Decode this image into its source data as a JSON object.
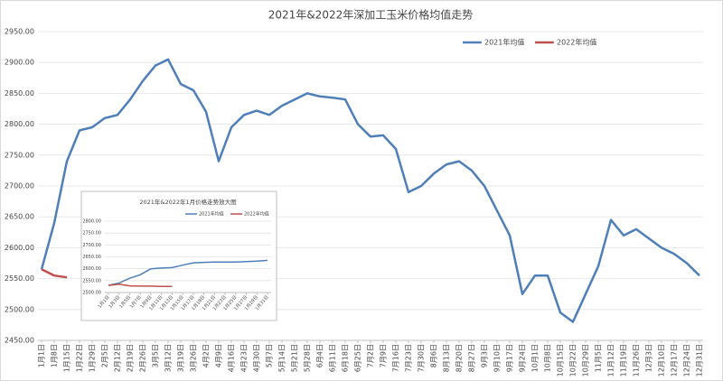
{
  "chart_data": [
    {
      "type": "line",
      "title": "2021年&2022年深加工玉米价格均值走势",
      "categories": [
        "1月1日",
        "1月8日",
        "1月15日",
        "1月22日",
        "1月29日",
        "2月5日",
        "2月12日",
        "2月19日",
        "2月26日",
        "3月5日",
        "3月12日",
        "3月19日",
        "3月26日",
        "4月2日",
        "4月9日",
        "4月16日",
        "4月23日",
        "4月30日",
        "5月7日",
        "5月14日",
        "5月21日",
        "5月28日",
        "6月4日",
        "6月11日",
        "6月18日",
        "6月25日",
        "7月2日",
        "7月9日",
        "7月16日",
        "7月23日",
        "7月30日",
        "8月6日",
        "8月13日",
        "8月20日",
        "8月27日",
        "9月3日",
        "9月10日",
        "9月17日",
        "9月24日",
        "10月1日",
        "10月8日",
        "10月15日",
        "10月22日",
        "10月29日",
        "11月5日",
        "11月12日",
        "11月19日",
        "11月26日",
        "12月3日",
        "12月10日",
        "12月17日",
        "12月24日",
        "12月31日"
      ],
      "series": [
        {
          "name": "2021年均值",
          "color": "#4f7fb8",
          "values": [
            2565,
            2640,
            2740,
            2790,
            2795,
            2810,
            2815,
            2840,
            2870,
            2895,
            2905,
            2865,
            2855,
            2820,
            2740,
            2795,
            2815,
            2822,
            2815,
            2830,
            2840,
            2850,
            2845,
            2843,
            2840,
            2800,
            2780,
            2782,
            2760,
            2690,
            2700,
            2720,
            2735,
            2740,
            2725,
            2700,
            2660,
            2620,
            2525,
            2555,
            2555,
            2495,
            2480,
            2525,
            2570,
            2645,
            2620,
            2630,
            2615,
            2600,
            2590,
            2575,
            2555
          ]
        },
        {
          "name": "2022年均值",
          "color": "#c0504d",
          "values": [
            2565,
            2555,
            2552,
            null,
            null,
            null,
            null,
            null,
            null,
            null,
            null,
            null,
            null,
            null,
            null,
            null,
            null,
            null,
            null,
            null,
            null,
            null,
            null,
            null,
            null,
            null,
            null,
            null,
            null,
            null,
            null,
            null,
            null,
            null,
            null,
            null,
            null,
            null,
            null,
            null,
            null,
            null,
            null,
            null,
            null,
            null,
            null,
            null,
            null,
            null,
            null,
            null,
            null
          ]
        }
      ],
      "ylim": [
        2450,
        2950
      ],
      "yticks": [
        {
          "value": 2450,
          "label": "2450.00"
        },
        {
          "value": 2500,
          "label": "2500.00"
        },
        {
          "value": 2550,
          "label": "2550.00"
        },
        {
          "value": 2600,
          "label": "2600.00"
        },
        {
          "value": 2650,
          "label": "2650.00"
        },
        {
          "value": 2700,
          "label": "2700.00"
        },
        {
          "value": 2750,
          "label": "2750.00"
        },
        {
          "value": 2800,
          "label": "2800.00"
        },
        {
          "value": 2850,
          "label": "2850.00"
        },
        {
          "value": 2900,
          "label": "2900.00"
        },
        {
          "value": 2950,
          "label": "2950.00"
        }
      ],
      "grid": true,
      "legend": "top-right"
    },
    {
      "type": "line",
      "title": "2021年&2022年1月价格走势放大图",
      "categories": [
        "1月1日",
        "1月3日",
        "1月5日",
        "1月7日",
        "1月9日",
        "1月11日",
        "1月13日",
        "1月15日",
        "1月17日",
        "1月19日",
        "1月21日",
        "1月23日",
        "1月25日",
        "1月27日",
        "1月29日",
        "1月31日"
      ],
      "series": [
        {
          "name": "2021年均值",
          "color": "#4f7fb8",
          "values": [
            2530,
            2540,
            2560,
            2575,
            2600,
            2603,
            2605,
            2615,
            2625,
            2627,
            2628,
            2628,
            2628,
            2630,
            2632,
            2635
          ]
        },
        {
          "name": "2022年均值",
          "color": "#c0504d",
          "values": [
            2530,
            2535,
            2528,
            2527,
            2527,
            2526,
            2526,
            null,
            null,
            null,
            null,
            null,
            null,
            null,
            null,
            null
          ]
        }
      ],
      "ylim": [
        2500,
        2800
      ],
      "yticks": [
        {
          "value": 2500,
          "label": "2500.00"
        },
        {
          "value": 2550,
          "label": "2550.00"
        },
        {
          "value": 2600,
          "label": "2600.00"
        },
        {
          "value": 2650,
          "label": "2650.00"
        },
        {
          "value": 2700,
          "label": "2700.00"
        },
        {
          "value": 2750,
          "label": "2750.00"
        },
        {
          "value": 2800,
          "label": "2800.00"
        }
      ],
      "grid": true,
      "legend": "top"
    }
  ]
}
